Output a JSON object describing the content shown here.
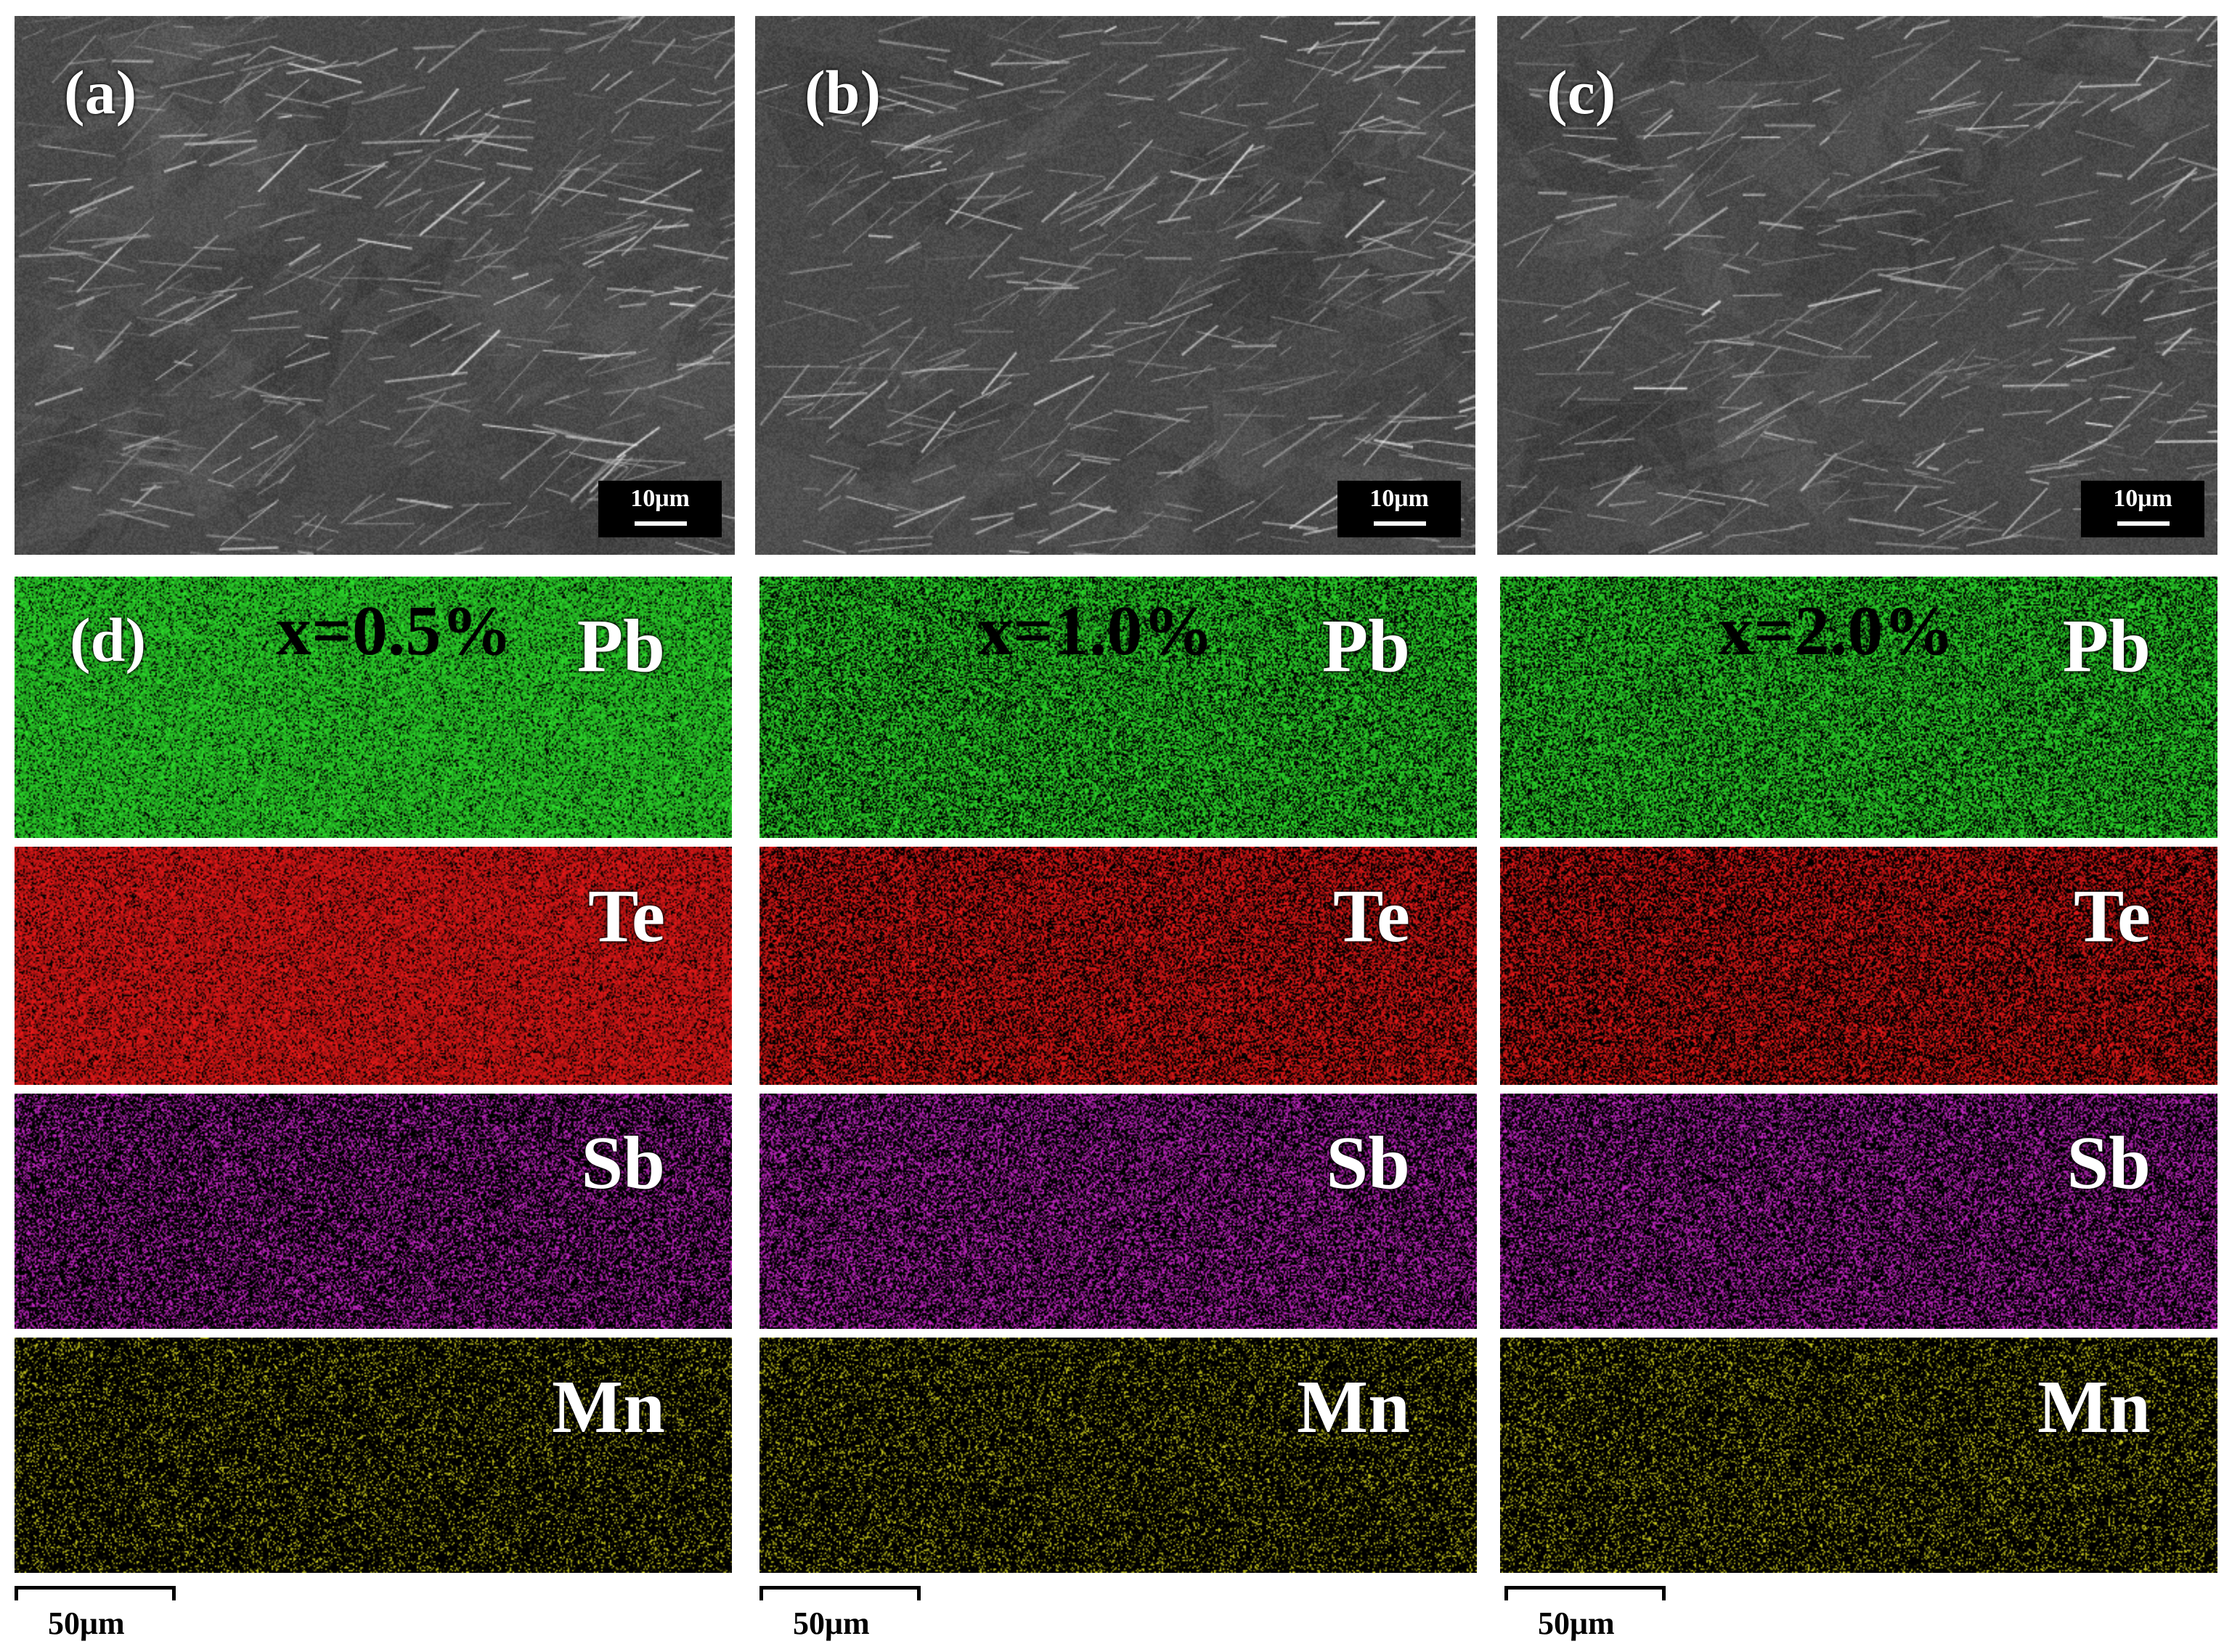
{
  "sem_panels": [
    {
      "label": "(a)",
      "scale": "10μm"
    },
    {
      "label": "(b)",
      "scale": "10μm"
    },
    {
      "label": "(c)",
      "scale": "10μm"
    }
  ],
  "map_columns": [
    {
      "composition": "x=0.5%",
      "panel_label": "(d)"
    },
    {
      "composition": "x=1.0%",
      "panel_label": ""
    },
    {
      "composition": "x=2.0%",
      "panel_label": ""
    }
  ],
  "elements": [
    {
      "symbol": "Pb",
      "color": "#2ee62e"
    },
    {
      "symbol": "Te",
      "color": "#f01a1a"
    },
    {
      "symbol": "Sb",
      "color": "#d02ad0"
    },
    {
      "symbol": "Mn",
      "color": "#d8d820"
    }
  ],
  "map_scale": "50μm"
}
